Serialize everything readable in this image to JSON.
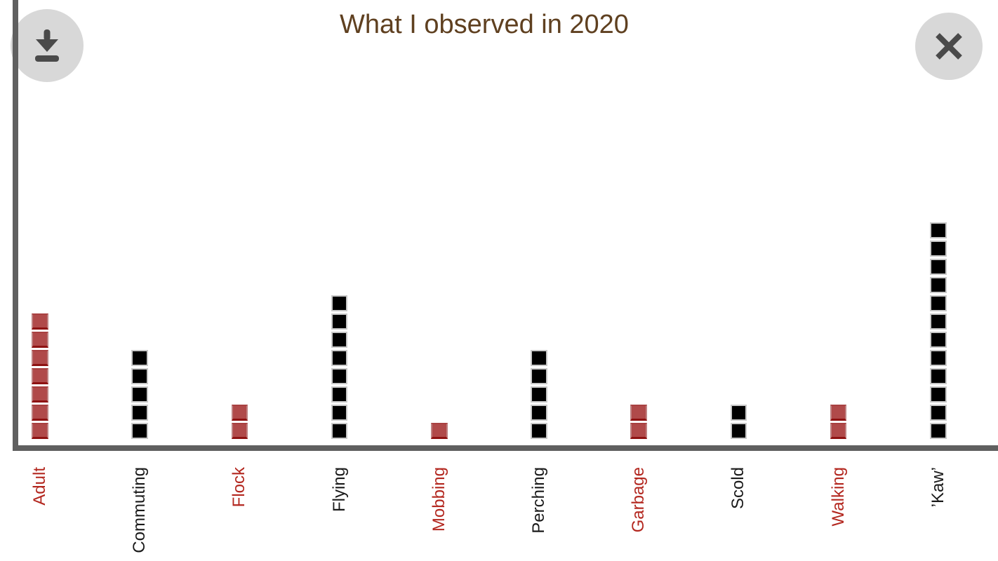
{
  "title": {
    "text": "What I observed in 2020"
  },
  "toolbar": {
    "download_icon": "download-icon",
    "close_icon": "close-icon"
  },
  "chart_data": {
    "type": "bar",
    "variant": "unit-square-pictograph-columns",
    "title": "What I observed in 2020",
    "categories": [
      "Adult",
      "Commuting",
      "Flock",
      "Flying",
      "Mobbing",
      "Perching",
      "Garbage",
      "Scold",
      "Walking",
      "’Kaw’"
    ],
    "values": [
      7,
      5,
      2,
      8,
      1,
      5,
      2,
      2,
      2,
      12
    ],
    "bar_colors": [
      "red",
      "black",
      "red",
      "black",
      "red",
      "black",
      "red",
      "black",
      "red",
      "black"
    ],
    "xlabel": "",
    "ylabel": "",
    "ylim": [
      0,
      12
    ],
    "grid": false,
    "legend": "none",
    "x_tick_label_rotation_deg": 90
  },
  "palette": {
    "red_fill": "#b04a4a",
    "red_border_dark": "#8e1212",
    "red_text": "#b3271f",
    "black_fill": "#000000",
    "black_border": "#c8c8c8",
    "black_text": "#1a1a1a",
    "axis": "#606060",
    "title_text": "#5f4020",
    "button_bg": "#d8d8d8",
    "icon": "#4a4a4a"
  }
}
